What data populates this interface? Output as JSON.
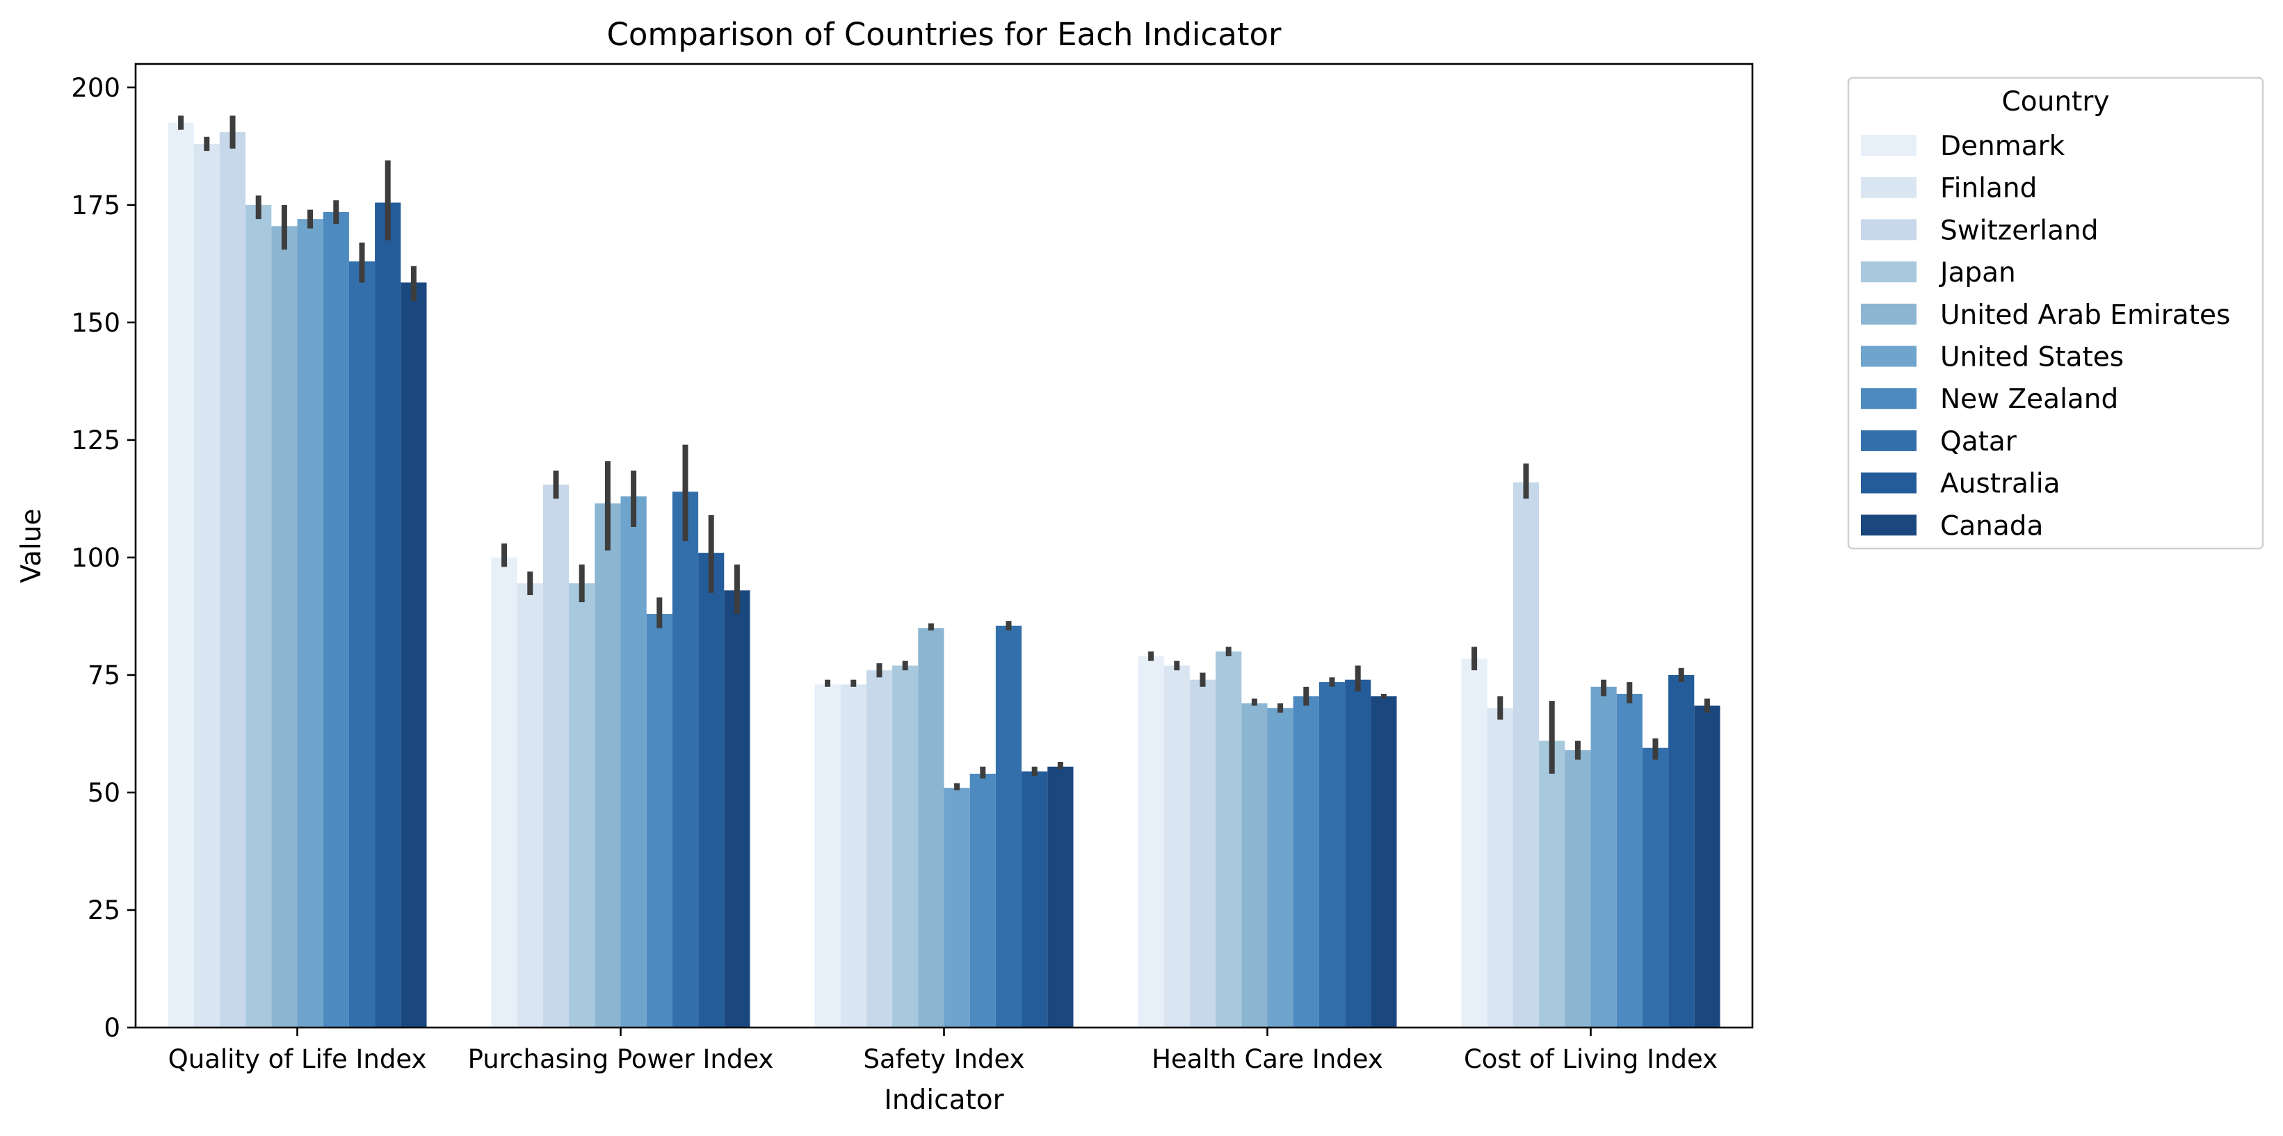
{
  "chart_data": {
    "type": "bar",
    "title": "Comparison of Countries for Each Indicator",
    "xlabel": "Indicator",
    "ylabel": "Value",
    "ylim": [
      0,
      205
    ],
    "yticks": [
      "0",
      "25",
      "50",
      "75",
      "100",
      "125",
      "150",
      "175",
      "200"
    ],
    "categories": [
      "Quality of Life Index",
      "Purchasing Power Index",
      "Safety Index",
      "Health Care Index",
      "Cost of Living Index"
    ],
    "legend_title": "Country",
    "legend_position": "outside-top-right",
    "error_bar_color": "#3d3d3d",
    "grid": false,
    "series": [
      {
        "name": "Denmark",
        "color": "#e7f0f9",
        "values": [
          192.5,
          100.0,
          73.0,
          79.0,
          78.5
        ],
        "errors": [
          [
            191,
            194
          ],
          [
            98,
            103
          ],
          [
            72.5,
            74
          ],
          [
            78,
            80
          ],
          [
            76,
            81
          ]
        ]
      },
      {
        "name": "Finland",
        "color": "#dae5f2",
        "values": [
          188.0,
          94.5,
          73.0,
          77.0,
          68.0
        ],
        "errors": [
          [
            186.5,
            189.5
          ],
          [
            92,
            97
          ],
          [
            72.5,
            74
          ],
          [
            76,
            78
          ],
          [
            65.5,
            70.5
          ]
        ]
      },
      {
        "name": "Switzerland",
        "color": "#c6d8ea",
        "values": [
          190.5,
          115.5,
          76.0,
          74.0,
          116.0
        ],
        "errors": [
          [
            187,
            194
          ],
          [
            112.5,
            118.5
          ],
          [
            74.5,
            77.5
          ],
          [
            72.5,
            75.5
          ],
          [
            112.5,
            120
          ]
        ]
      },
      {
        "name": "Japan",
        "color": "#a8c8de",
        "values": [
          175.0,
          94.5,
          77.0,
          80.0,
          61.0
        ],
        "errors": [
          [
            172,
            177
          ],
          [
            90.5,
            98.5
          ],
          [
            76,
            78
          ],
          [
            79,
            81
          ],
          [
            54,
            69.5
          ]
        ]
      },
      {
        "name": "United Arab Emirates",
        "color": "#8cb5d2",
        "values": [
          170.5,
          111.5,
          85.0,
          69.0,
          59.0
        ],
        "errors": [
          [
            165.5,
            175
          ],
          [
            101.5,
            120.5
          ],
          [
            84.5,
            86
          ],
          [
            68.5,
            70
          ],
          [
            57,
            61
          ]
        ]
      },
      {
        "name": "United States",
        "color": "#6fa4cd",
        "values": [
          172.0,
          113.0,
          51.0,
          68.0,
          72.5
        ],
        "errors": [
          [
            170,
            174
          ],
          [
            106.5,
            118.5
          ],
          [
            50.5,
            52
          ],
          [
            67,
            69
          ],
          [
            70.5,
            74
          ]
        ]
      },
      {
        "name": "New Zealand",
        "color": "#4d8ac0",
        "values": [
          173.5,
          88.0,
          54.0,
          70.5,
          71.0
        ],
        "errors": [
          [
            171,
            176
          ],
          [
            85,
            91.5
          ],
          [
            53,
            55.5
          ],
          [
            68.5,
            72.5
          ],
          [
            69,
            73.5
          ]
        ]
      },
      {
        "name": "Qatar",
        "color": "#3370ab",
        "values": [
          163.0,
          114.0,
          85.5,
          73.5,
          59.5
        ],
        "errors": [
          [
            158.5,
            167
          ],
          [
            103.5,
            124
          ],
          [
            84.5,
            86.5
          ],
          [
            72.5,
            74.5
          ],
          [
            57,
            61.5
          ]
        ]
      },
      {
        "name": "Australia",
        "color": "#245c9a",
        "values": [
          175.5,
          101.0,
          54.5,
          74.0,
          75.0
        ],
        "errors": [
          [
            167.5,
            184.5
          ],
          [
            92.5,
            109
          ],
          [
            53.5,
            55.5
          ],
          [
            71.5,
            77
          ],
          [
            73.5,
            76.5
          ]
        ]
      },
      {
        "name": "Canada",
        "color": "#1b477f",
        "values": [
          158.5,
          93.0,
          55.5,
          70.5,
          68.5
        ],
        "errors": [
          [
            154.5,
            162
          ],
          [
            88,
            98.5
          ],
          [
            55,
            56.5
          ],
          [
            70,
            71
          ],
          [
            67,
            70
          ]
        ]
      }
    ]
  }
}
